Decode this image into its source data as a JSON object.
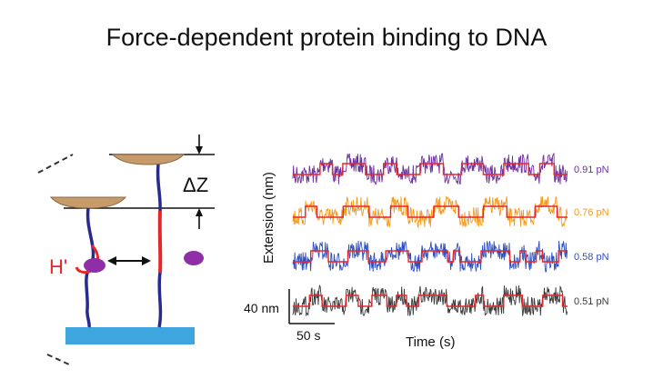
{
  "title": "Force-dependent protein binding to DNA",
  "schematic": {
    "delta_z_label": "ΔZ",
    "protein_label": "H'"
  },
  "traces": {
    "y_axis_label": "Extension (nm)",
    "x_axis_label": "Time (s)",
    "scale_bar_y": "40 nm",
    "scale_bar_x": "50 s",
    "series": [
      {
        "force": "0.91 pN",
        "color": "#7030a0"
      },
      {
        "force": "0.76 pN",
        "color": "#f39a1e"
      },
      {
        "force": "0.58 pN",
        "color": "#2e4fbf"
      },
      {
        "force": "0.51 pN",
        "color": "#3a3a3a"
      }
    ],
    "fit_color": "#e8262a"
  }
}
